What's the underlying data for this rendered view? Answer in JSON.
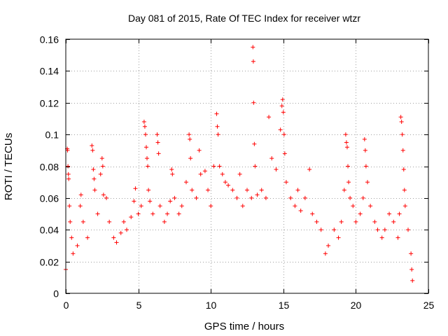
{
  "chart_data": {
    "type": "scatter",
    "title": "Day 081 of 2015, Rate Of TEC Index for receiver wtzr",
    "xlabel": "GPS time / hours",
    "ylabel": "ROTI / TECUs",
    "xlim": [
      0,
      25
    ],
    "ylim": [
      0,
      0.16
    ],
    "xticks": [
      0,
      5,
      10,
      15,
      20,
      25
    ],
    "xtick_labels": [
      "0",
      "5",
      "10",
      "15",
      "20",
      "25"
    ],
    "yticks": [
      0,
      0.02,
      0.04,
      0.06,
      0.08,
      0.1,
      0.12,
      0.14,
      0.16
    ],
    "ytick_labels": [
      "0",
      "0.02",
      "0.04",
      "0.06",
      "0.08",
      "0.1",
      "0.12",
      "0.14",
      "0.16"
    ],
    "grid": true,
    "marker": "+",
    "color": "#ff0000",
    "series": [
      {
        "name": "ROTI",
        "points": [
          [
            0.0,
            0.015
          ],
          [
            0.1,
            0.091
          ],
          [
            0.12,
            0.09
          ],
          [
            0.15,
            0.08
          ],
          [
            0.18,
            0.075
          ],
          [
            0.2,
            0.072
          ],
          [
            0.25,
            0.055
          ],
          [
            0.3,
            0.045
          ],
          [
            0.4,
            0.035
          ],
          [
            0.5,
            0.025
          ],
          [
            0.8,
            0.03
          ],
          [
            1.0,
            0.055
          ],
          [
            1.05,
            0.062
          ],
          [
            1.2,
            0.045
          ],
          [
            1.5,
            0.035
          ],
          [
            1.8,
            0.093
          ],
          [
            1.85,
            0.09
          ],
          [
            1.9,
            0.078
          ],
          [
            1.95,
            0.072
          ],
          [
            2.0,
            0.065
          ],
          [
            2.2,
            0.05
          ],
          [
            2.4,
            0.075
          ],
          [
            2.5,
            0.085
          ],
          [
            2.55,
            0.08
          ],
          [
            2.6,
            0.062
          ],
          [
            2.8,
            0.06
          ],
          [
            3.0,
            0.045
          ],
          [
            3.3,
            0.035
          ],
          [
            3.5,
            0.032
          ],
          [
            3.8,
            0.038
          ],
          [
            4.0,
            0.045
          ],
          [
            4.2,
            0.04
          ],
          [
            4.5,
            0.048
          ],
          [
            4.7,
            0.058
          ],
          [
            4.8,
            0.066
          ],
          [
            5.0,
            0.05
          ],
          [
            5.2,
            0.055
          ],
          [
            5.4,
            0.108
          ],
          [
            5.45,
            0.105
          ],
          [
            5.5,
            0.1
          ],
          [
            5.55,
            0.092
          ],
          [
            5.6,
            0.085
          ],
          [
            5.65,
            0.08
          ],
          [
            5.7,
            0.065
          ],
          [
            5.8,
            0.058
          ],
          [
            6.0,
            0.05
          ],
          [
            6.3,
            0.1
          ],
          [
            6.35,
            0.095
          ],
          [
            6.4,
            0.088
          ],
          [
            6.5,
            0.055
          ],
          [
            6.8,
            0.045
          ],
          [
            7.0,
            0.05
          ],
          [
            7.2,
            0.058
          ],
          [
            7.3,
            0.078
          ],
          [
            7.35,
            0.075
          ],
          [
            7.5,
            0.06
          ],
          [
            7.8,
            0.05
          ],
          [
            8.0,
            0.055
          ],
          [
            8.3,
            0.07
          ],
          [
            8.5,
            0.1
          ],
          [
            8.55,
            0.097
          ],
          [
            8.6,
            0.085
          ],
          [
            8.7,
            0.065
          ],
          [
            9.0,
            0.06
          ],
          [
            9.2,
            0.09
          ],
          [
            9.3,
            0.075
          ],
          [
            9.6,
            0.077
          ],
          [
            9.8,
            0.065
          ],
          [
            10.0,
            0.055
          ],
          [
            10.2,
            0.08
          ],
          [
            10.4,
            0.113
          ],
          [
            10.45,
            0.105
          ],
          [
            10.5,
            0.1
          ],
          [
            10.6,
            0.08
          ],
          [
            10.8,
            0.075
          ],
          [
            11.0,
            0.07
          ],
          [
            11.2,
            0.068
          ],
          [
            11.5,
            0.065
          ],
          [
            11.8,
            0.06
          ],
          [
            12.0,
            0.075
          ],
          [
            12.2,
            0.055
          ],
          [
            12.5,
            0.065
          ],
          [
            12.8,
            0.06
          ],
          [
            12.9,
            0.155
          ],
          [
            12.93,
            0.146
          ],
          [
            12.95,
            0.12
          ],
          [
            13.0,
            0.094
          ],
          [
            13.05,
            0.08
          ],
          [
            13.2,
            0.062
          ],
          [
            13.5,
            0.065
          ],
          [
            13.8,
            0.06
          ],
          [
            14.0,
            0.111
          ],
          [
            14.2,
            0.085
          ],
          [
            14.5,
            0.078
          ],
          [
            14.8,
            0.103
          ],
          [
            14.9,
            0.118
          ],
          [
            14.95,
            0.122
          ],
          [
            15.0,
            0.114
          ],
          [
            15.05,
            0.1
          ],
          [
            15.1,
            0.088
          ],
          [
            15.2,
            0.07
          ],
          [
            15.5,
            0.06
          ],
          [
            15.8,
            0.055
          ],
          [
            16.0,
            0.065
          ],
          [
            16.2,
            0.052
          ],
          [
            16.5,
            0.06
          ],
          [
            16.8,
            0.078
          ],
          [
            17.0,
            0.05
          ],
          [
            17.3,
            0.045
          ],
          [
            17.6,
            0.04
          ],
          [
            17.9,
            0.025
          ],
          [
            18.1,
            0.03
          ],
          [
            18.5,
            0.04
          ],
          [
            18.8,
            0.035
          ],
          [
            19.0,
            0.045
          ],
          [
            19.2,
            0.065
          ],
          [
            19.3,
            0.1
          ],
          [
            19.35,
            0.095
          ],
          [
            19.4,
            0.092
          ],
          [
            19.45,
            0.08
          ],
          [
            19.5,
            0.07
          ],
          [
            19.6,
            0.06
          ],
          [
            19.8,
            0.055
          ],
          [
            20.0,
            0.045
          ],
          [
            20.3,
            0.05
          ],
          [
            20.5,
            0.06
          ],
          [
            20.6,
            0.097
          ],
          [
            20.65,
            0.09
          ],
          [
            20.7,
            0.08
          ],
          [
            20.8,
            0.07
          ],
          [
            21.0,
            0.055
          ],
          [
            21.3,
            0.045
          ],
          [
            21.5,
            0.04
          ],
          [
            21.8,
            0.035
          ],
          [
            22.0,
            0.04
          ],
          [
            22.3,
            0.05
          ],
          [
            22.6,
            0.045
          ],
          [
            22.9,
            0.035
          ],
          [
            23.0,
            0.05
          ],
          [
            23.1,
            0.111
          ],
          [
            23.15,
            0.108
          ],
          [
            23.2,
            0.1
          ],
          [
            23.25,
            0.09
          ],
          [
            23.3,
            0.078
          ],
          [
            23.35,
            0.065
          ],
          [
            23.4,
            0.055
          ],
          [
            23.6,
            0.04
          ],
          [
            23.8,
            0.025
          ],
          [
            23.85,
            0.015
          ],
          [
            23.9,
            0.008
          ]
        ]
      }
    ]
  }
}
